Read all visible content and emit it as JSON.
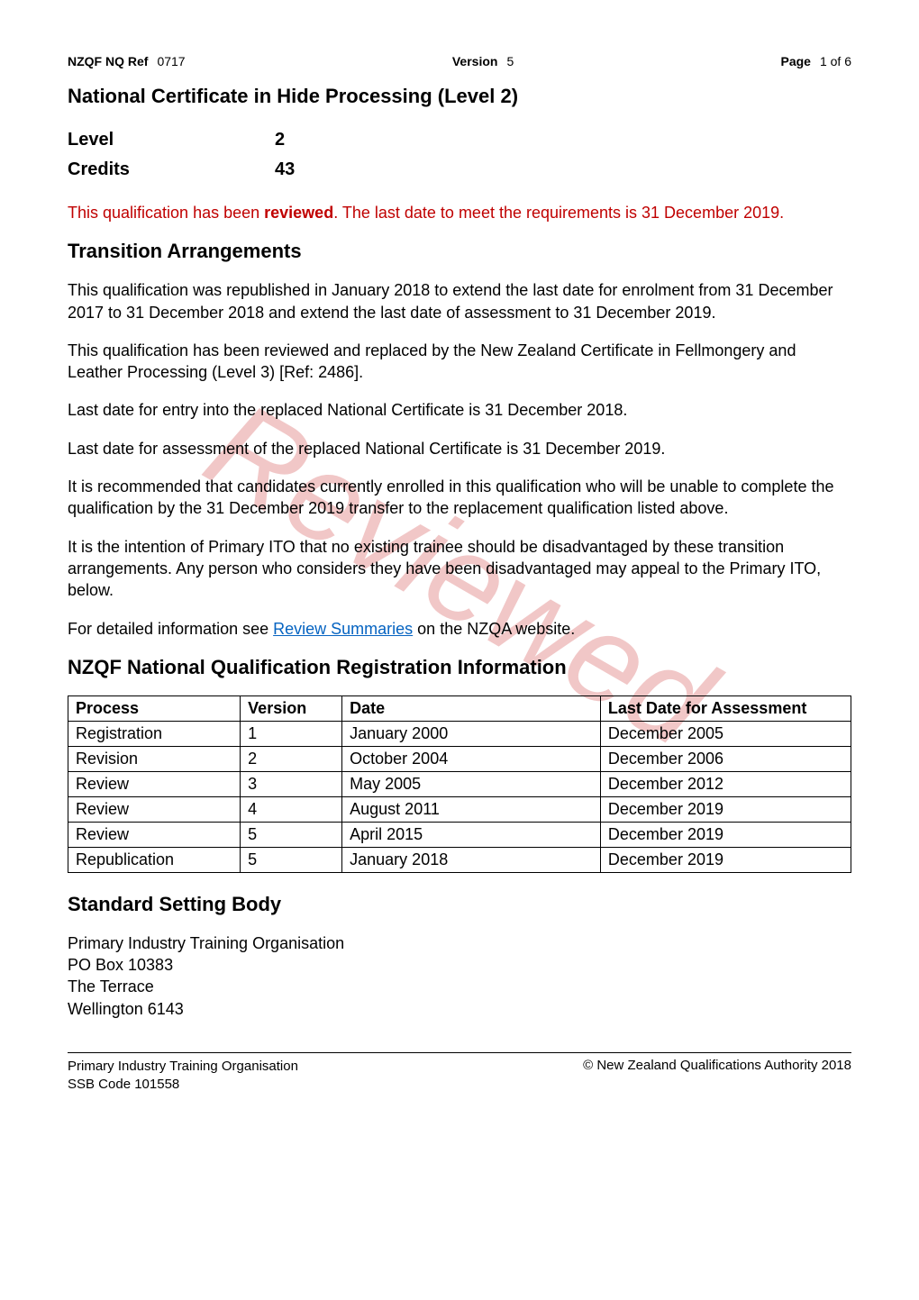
{
  "header": {
    "nzqf_label": "NZQF NQ Ref",
    "nzqf_value": "0717",
    "version_label": "Version",
    "version_value": "5",
    "page_label": "Page",
    "page_value": "1 of 6"
  },
  "title": "National Certificate in Hide Processing (Level 2)",
  "level_label": "Level",
  "level_value": "2",
  "credits_label": "Credits",
  "credits_value": "43",
  "reviewed_notice_1": "This qualification has been ",
  "reviewed_notice_bold": "reviewed",
  "reviewed_notice_2": ".  The last date to meet the requirements is 31 December 2019.",
  "transition_heading": "Transition Arrangements",
  "transition_p1": "This qualification was republished in January 2018 to extend the last date for enrolment from 31 December 2017 to 31 December 2018 and extend the last date of assessment to 31 December 2019.",
  "transition_p2": "This qualification has been reviewed and replaced by the New Zealand Certificate in Fellmongery and Leather Processing (Level 3) [Ref: 2486].",
  "transition_p3": "Last date for entry into the replaced National Certificate is 31 December 2018.",
  "transition_p4": "Last date for assessment of the replaced National Certificate is 31 December 2019.",
  "transition_p5": "It is recommended that candidates currently enrolled in this qualification who will be unable to complete the qualification by the 31 December 2019 transfer to the replacement qualification listed above.",
  "transition_p6": "It is the intention of Primary ITO that no existing trainee should be disadvantaged by these transition arrangements. Any person who considers they have been disadvantaged may appeal to the Primary ITO, below.",
  "transition_p7_1": "For detailed information see ",
  "transition_p7_link": "Review Summaries",
  "transition_p7_2": " on the NZQA website.",
  "registration_heading": "NZQF National Qualification Registration Information",
  "table": {
    "headers": [
      "Process",
      "Version",
      "Date",
      "Last Date for Assessment"
    ],
    "rows": [
      [
        "Registration",
        "1",
        "January 2000",
        "December 2005"
      ],
      [
        "Revision",
        "2",
        "October 2004",
        "December 2006"
      ],
      [
        "Review",
        "3",
        "May 2005",
        "December 2012"
      ],
      [
        "Review",
        "4",
        "August 2011",
        "December 2019"
      ],
      [
        "Review",
        "5",
        "April 2015",
        "December 2019"
      ],
      [
        "Republication",
        "5",
        "January 2018",
        "December 2019"
      ]
    ],
    "col_widths": [
      "22%",
      "13%",
      "33%",
      "32%"
    ]
  },
  "ssb_heading": "Standard Setting Body",
  "address": {
    "line1": "Primary Industry Training Organisation",
    "line2": "PO Box 10383",
    "line3": "The Terrace",
    "line4": "Wellington 6143"
  },
  "footer": {
    "org": "Primary Industry Training Organisation",
    "ssb": "SSB Code 101558",
    "copyright": "© New Zealand Qualifications Authority 2018"
  },
  "watermark_text": "Reviewed",
  "colors": {
    "red": "#c00000",
    "link": "#0563c1",
    "text": "#000000"
  }
}
